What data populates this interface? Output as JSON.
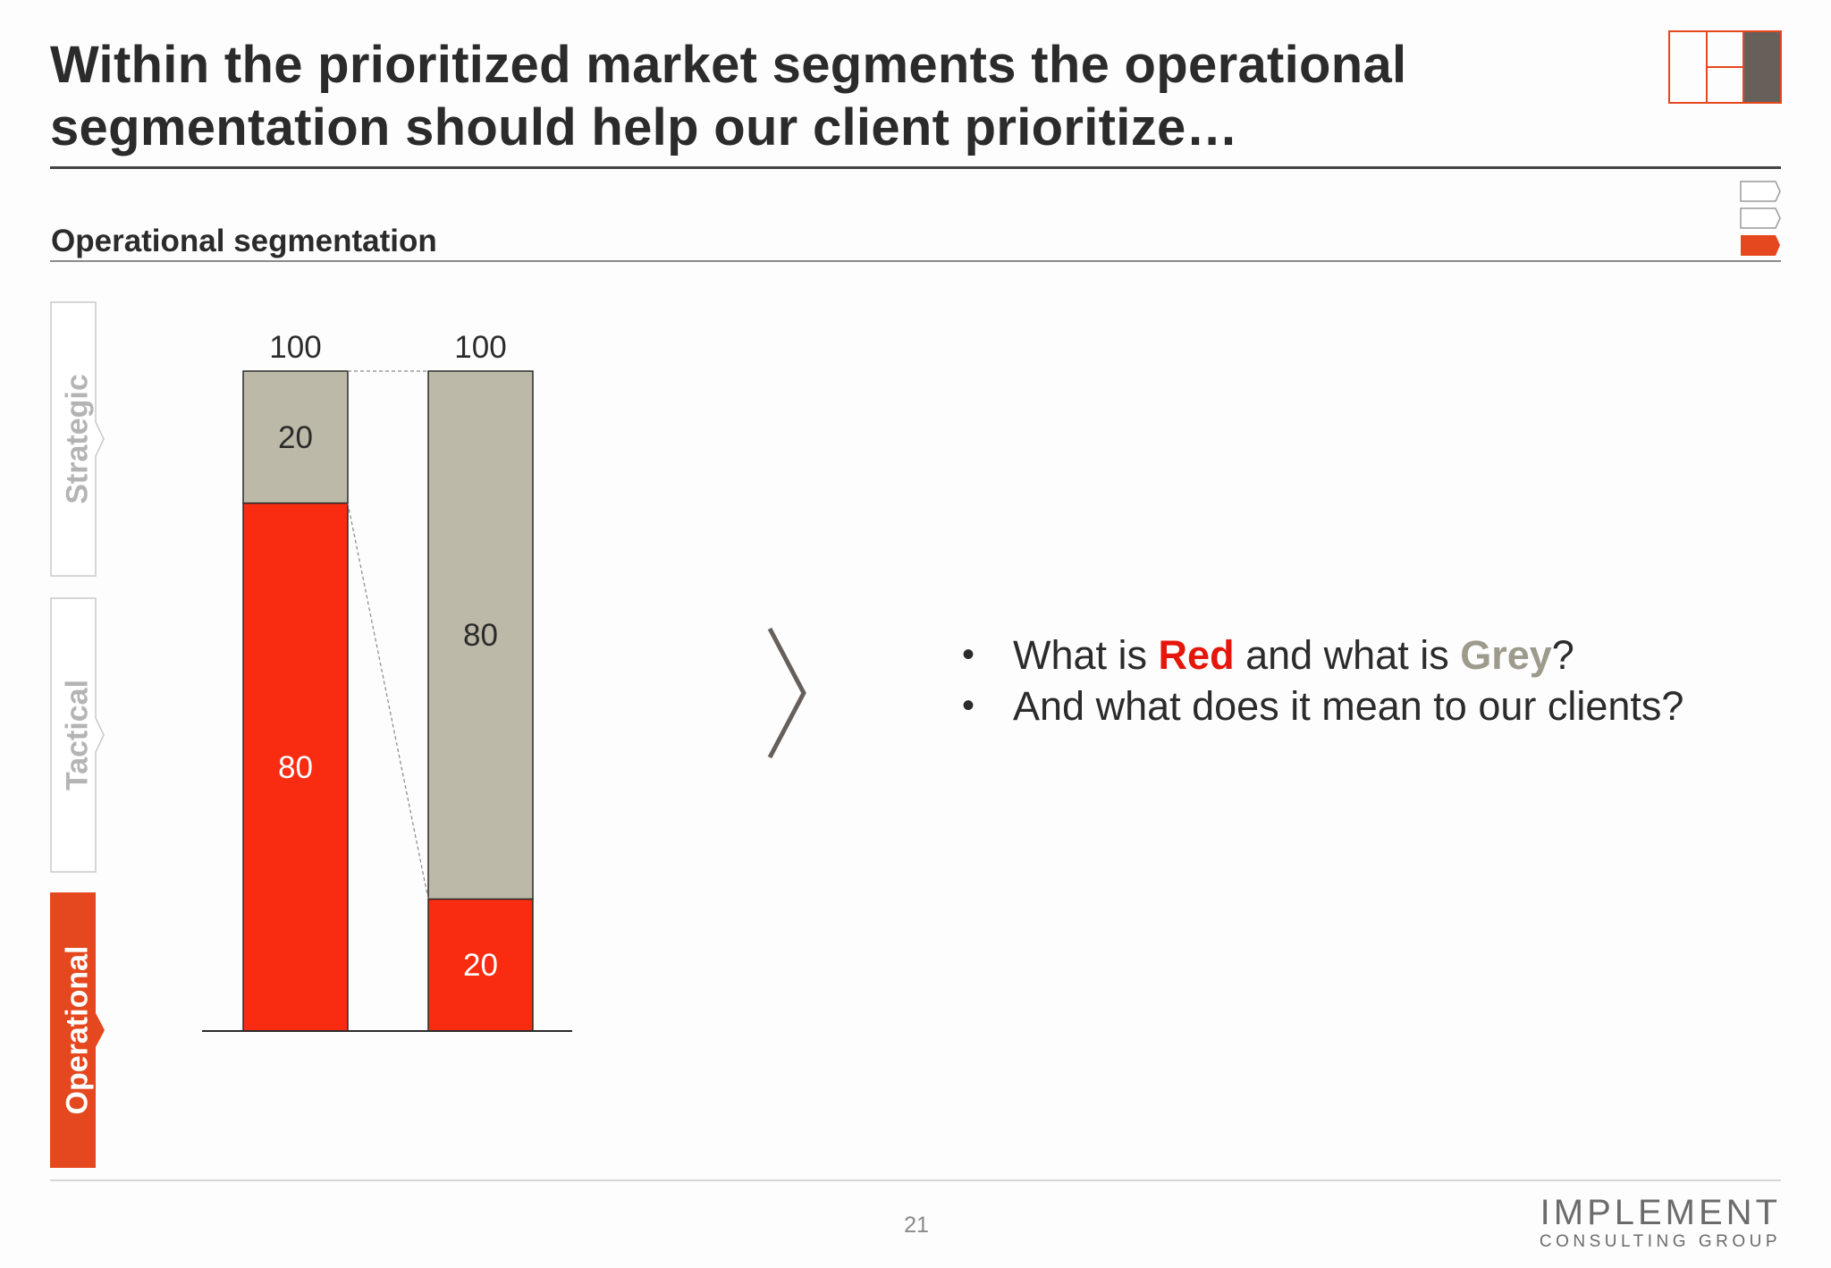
{
  "header": {
    "title_line_1": "Within the prioritized market segments the operational",
    "title_line_2": "segmentation should help our client prioritize…",
    "logo_icon": "grid-logo-icon",
    "section_tabs_icon": "section-progress-icon"
  },
  "section": {
    "subtitle": "Operational segmentation"
  },
  "side_tabs": [
    {
      "label": "Strategic",
      "active": false
    },
    {
      "label": "Tactical",
      "active": false
    },
    {
      "label": "Operational",
      "active": true
    }
  ],
  "chart_data": {
    "type": "bar",
    "stacked": true,
    "categories": [
      "",
      ""
    ],
    "totals": [
      "100",
      "100"
    ],
    "series": [
      {
        "color": "#f92b11",
        "values": [
          80,
          20
        ]
      },
      {
        "color": "#bdb9a8",
        "values": [
          20,
          80
        ]
      }
    ],
    "ylim": [
      0,
      100
    ],
    "connector_lines": "dashed"
  },
  "bullets": [
    {
      "prefix": "What is ",
      "red": "Red",
      "middle": " and what is ",
      "grey": "Grey",
      "suffix": "?"
    },
    {
      "text": "And what does it mean to our clients?"
    }
  ],
  "colors": {
    "accent": "#e5481e",
    "red": "#f92b11",
    "grey": "#bdb9a8",
    "text": "#2b2b2b"
  },
  "footer": {
    "page_number": "21",
    "brand_main": "IMPLEMENT",
    "brand_sub": "CONSULTING GROUP"
  }
}
